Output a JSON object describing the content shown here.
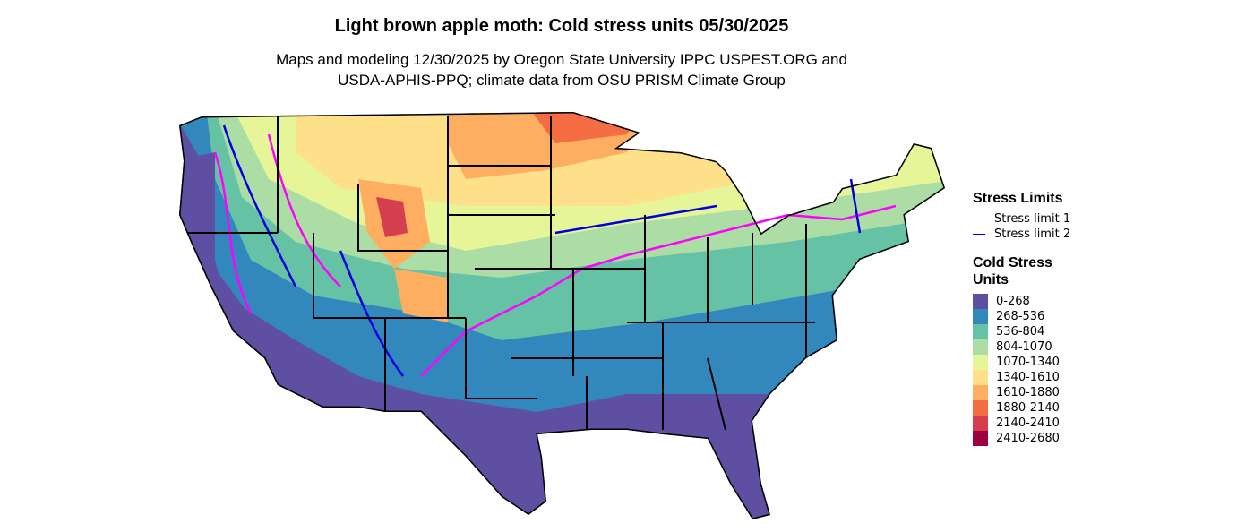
{
  "title": "Light brown apple moth: Cold stress units 05/30/2025",
  "subtitle_line1": "Maps and modeling 12/30/2025 by Oregon State University IPPC USPEST.ORG and",
  "subtitle_line2": "USDA-APHIS-PPQ; climate data from OSU PRISM Climate Group",
  "legend": {
    "stress_title": "Stress Limits",
    "stress_items": [
      {
        "label": "Stress limit 1",
        "color": "#ff00ff"
      },
      {
        "label": "Stress limit 2",
        "color": "#0000dd"
      }
    ],
    "units_title_1": "Cold Stress",
    "units_title_2": "Units",
    "bins": [
      {
        "label": "0-268",
        "color": "#5e4fa2"
      },
      {
        "label": "268-536",
        "color": "#3288bd"
      },
      {
        "label": "536-804",
        "color": "#66c2a5"
      },
      {
        "label": "804-1070",
        "color": "#abdda4"
      },
      {
        "label": "1070-1340",
        "color": "#e6f598"
      },
      {
        "label": "1340-1610",
        "color": "#fee08b"
      },
      {
        "label": "1610-1880",
        "color": "#fdae61"
      },
      {
        "label": "1880-2140",
        "color": "#f46d43"
      },
      {
        "label": "2140-2410",
        "color": "#d53e4f"
      },
      {
        "label": "2410-2680",
        "color": "#9e0142"
      }
    ]
  }
}
